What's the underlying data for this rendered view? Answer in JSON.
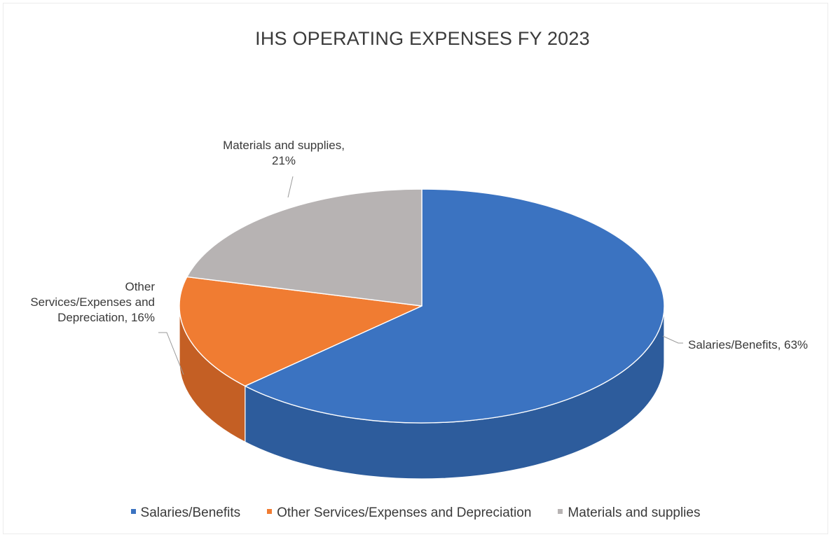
{
  "chart_data": {
    "type": "pie",
    "title": "IHS OPERATING EXPENSES FY 2023",
    "categories": [
      "Salaries/Benefits",
      "Other Services/Expenses and Depreciation",
      "Materials and supplies"
    ],
    "values": [
      63,
      16,
      21
    ],
    "unit": "%",
    "data_labels": [
      {
        "lines": [
          "Salaries/Benefits, 63%"
        ]
      },
      {
        "lines": [
          "Other",
          "Services/Expenses and",
          "Depreciation, 16%"
        ]
      },
      {
        "lines": [
          "Materials and supplies,",
          "21%"
        ]
      }
    ],
    "colors": [
      "#3b73c1",
      "#f07c32",
      "#b7b3b3"
    ],
    "side_colors": [
      "#2d5c9c",
      "#c45f24",
      "#8f8b8b"
    ],
    "style": "3d-pie",
    "legend_position": "bottom"
  }
}
